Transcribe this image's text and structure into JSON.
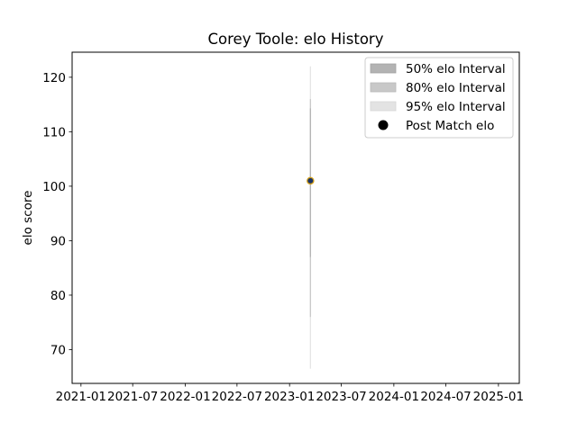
{
  "chart_data": {
    "type": "scatter",
    "title": "Corey Toole: elo History",
    "xlabel": "",
    "ylabel": "elo score",
    "x_ticks": [
      "2021-01",
      "2021-07",
      "2022-01",
      "2022-07",
      "2023-01",
      "2023-07",
      "2024-01",
      "2024-07",
      "2025-01"
    ],
    "y_ticks": [
      "70",
      "80",
      "90",
      "100",
      "110",
      "120"
    ],
    "xlim": [
      "2020-12-01",
      "2025-03-15"
    ],
    "ylim": [
      63.8,
      124.6
    ],
    "grid": false,
    "legend_position": "top-right",
    "legend": [
      {
        "label": "50% elo Interval",
        "color": "#b3b3b3"
      },
      {
        "label": "80% elo Interval",
        "color": "#c8c8c8"
      },
      {
        "label": "95% elo Interval",
        "color": "#e3e3e3"
      },
      {
        "label": "Post Match elo",
        "color": "#000000"
      }
    ],
    "series": [
      {
        "date": "2023-03-15",
        "elo": 101,
        "interval_50": [
          87,
          114.3
        ],
        "interval_80": [
          76,
          116
        ],
        "interval_95": [
          66.5,
          122
        ],
        "marker_color": "#1a3366",
        "marker_edge": "#d4a017"
      }
    ]
  }
}
